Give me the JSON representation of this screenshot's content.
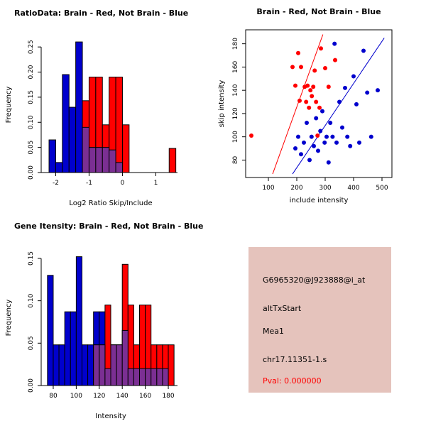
{
  "colors": {
    "red": "#ff0000",
    "blue": "#0000cd",
    "overlap": "#7b2f93",
    "axis": "#000000",
    "info_bg": "#e5c3bc",
    "pval": "#ff0000"
  },
  "info_panel": {
    "probe_id": "G6965320@J923888@i_at",
    "event_type": "altTxStart",
    "gene": "Mea1",
    "location": "chr17.11351-1.s",
    "pval": "Pval: 0.000000"
  },
  "chart_data": [
    {
      "id": "ratio_hist",
      "type": "bar",
      "title": "RatioData: Brain - Red, Not Brain - Blue",
      "xlabel": "Log2 Ratio Skip/Include",
      "ylabel": "Frequency",
      "xlim": [
        -2.35,
        1.65
      ],
      "ylim": [
        0,
        0.27
      ],
      "grid": false,
      "bin_width": 0.2,
      "xticks": [
        {
          "v": -2,
          "l": "-2"
        },
        {
          "v": -1,
          "l": "-1"
        },
        {
          "v": 0,
          "l": "0"
        },
        {
          "v": 1,
          "l": "1"
        }
      ],
      "yticks": [
        {
          "v": 0,
          "l": "0.00"
        },
        {
          "v": 0.05,
          "l": "0.05"
        },
        {
          "v": 0.1,
          "l": "0.10"
        },
        {
          "v": 0.15,
          "l": "0.15"
        },
        {
          "v": 0.2,
          "l": "0.20"
        },
        {
          "v": 0.25,
          "l": "0.25"
        }
      ],
      "series": [
        {
          "name": "Not Brain",
          "color_key": "blue",
          "bins": [
            [
              -2.2,
              0.065
            ],
            [
              -2.0,
              0.02
            ],
            [
              -1.8,
              0.195
            ],
            [
              -1.6,
              0.13
            ],
            [
              -1.4,
              0.26
            ],
            [
              -1.2,
              0.09
            ],
            [
              -1.0,
              0.05
            ],
            [
              -0.8,
              0.05
            ],
            [
              -0.6,
              0.05
            ],
            [
              -0.4,
              0.045
            ],
            [
              -0.2,
              0.02
            ]
          ]
        },
        {
          "name": "Brain",
          "color_key": "red",
          "bins": [
            [
              -1.2,
              0.143
            ],
            [
              -1.0,
              0.19
            ],
            [
              -0.8,
              0.19
            ],
            [
              -0.6,
              0.095
            ],
            [
              -0.4,
              0.19
            ],
            [
              -0.2,
              0.19
            ],
            [
              0.0,
              0.095
            ],
            [
              1.4,
              0.048
            ]
          ]
        }
      ]
    },
    {
      "id": "scatter_plot",
      "type": "scatter",
      "title": "Brain - Red, Not Brain - Blue",
      "xlabel": "include intensity",
      "ylabel": "skip intensity",
      "xlim": [
        20,
        535
      ],
      "ylim": [
        65,
        192
      ],
      "grid": false,
      "xticks": [
        {
          "v": 100,
          "l": "100"
        },
        {
          "v": 200,
          "l": "200"
        },
        {
          "v": 300,
          "l": "300"
        },
        {
          "v": 400,
          "l": "400"
        },
        {
          "v": 500,
          "l": "500"
        }
      ],
      "yticks": [
        {
          "v": 80,
          "l": "80"
        },
        {
          "v": 100,
          "l": "100"
        },
        {
          "v": 120,
          "l": "120"
        },
        {
          "v": 140,
          "l": "140"
        },
        {
          "v": 160,
          "l": "160"
        },
        {
          "v": 180,
          "l": "180"
        }
      ],
      "series": [
        {
          "name": "Brain",
          "color_key": "red",
          "points": [
            [
              40,
              101
            ],
            [
              185,
              160
            ],
            [
              195,
              144
            ],
            [
              205,
              172
            ],
            [
              210,
              131
            ],
            [
              215,
              160
            ],
            [
              228,
              143
            ],
            [
              233,
              130
            ],
            [
              238,
              144
            ],
            [
              243,
              125
            ],
            [
              248,
              140
            ],
            [
              253,
              135
            ],
            [
              258,
              143
            ],
            [
              263,
              157
            ],
            [
              268,
              130
            ],
            [
              273,
              101
            ],
            [
              280,
              125
            ],
            [
              285,
              176
            ],
            [
              300,
              159
            ],
            [
              312,
              143
            ],
            [
              335,
              166
            ]
          ]
        },
        {
          "name": "Not Brain",
          "color_key": "blue",
          "points": [
            [
              195,
              90
            ],
            [
              205,
              100
            ],
            [
              215,
              85
            ],
            [
              225,
              95
            ],
            [
              235,
              112
            ],
            [
              245,
              80
            ],
            [
              252,
              100
            ],
            [
              260,
              92
            ],
            [
              268,
              116
            ],
            [
              275,
              88
            ],
            [
              283,
              105
            ],
            [
              290,
              122
            ],
            [
              298,
              95
            ],
            [
              305,
              100
            ],
            [
              312,
              78
            ],
            [
              318,
              112
            ],
            [
              326,
              100
            ],
            [
              333,
              180
            ],
            [
              340,
              95
            ],
            [
              350,
              130
            ],
            [
              360,
              108
            ],
            [
              370,
              142
            ],
            [
              378,
              100
            ],
            [
              388,
              92
            ],
            [
              400,
              152
            ],
            [
              410,
              128
            ],
            [
              420,
              95
            ],
            [
              435,
              174
            ],
            [
              448,
              138
            ],
            [
              462,
              100
            ],
            [
              485,
              140
            ]
          ]
        }
      ],
      "lines": [
        {
          "name": "brain-fit-line",
          "color_key": "red",
          "x1": 115,
          "y1": 68,
          "x2": 292,
          "y2": 188
        },
        {
          "name": "notbrain-fit-line",
          "color_key": "blue",
          "x1": 185,
          "y1": 68,
          "x2": 508,
          "y2": 185
        }
      ]
    },
    {
      "id": "gene_hist",
      "type": "bar",
      "title": "Gene Itensity: Brain - Red, Not Brain - Blue",
      "xlabel": "Intensity",
      "ylabel": "Frequency",
      "xlim": [
        72,
        188
      ],
      "ylim": [
        0,
        0.16
      ],
      "grid": false,
      "bin_width": 5,
      "xticks": [
        {
          "v": 80,
          "l": "80"
        },
        {
          "v": 100,
          "l": "100"
        },
        {
          "v": 120,
          "l": "120"
        },
        {
          "v": 140,
          "l": "140"
        },
        {
          "v": 160,
          "l": "160"
        },
        {
          "v": 180,
          "l": "180"
        }
      ],
      "yticks": [
        {
          "v": 0,
          "l": "0.00"
        },
        {
          "v": 0.05,
          "l": "0.05"
        },
        {
          "v": 0.1,
          "l": "0.10"
        },
        {
          "v": 0.15,
          "l": "0.15"
        }
      ],
      "series": [
        {
          "name": "Not Brain",
          "color_key": "blue",
          "bins": [
            [
              75,
              0.13
            ],
            [
              80,
              0.048
            ],
            [
              85,
              0.048
            ],
            [
              90,
              0.087
            ],
            [
              95,
              0.087
            ],
            [
              100,
              0.152
            ],
            [
              105,
              0.048
            ],
            [
              110,
              0.048
            ],
            [
              115,
              0.087
            ],
            [
              120,
              0.087
            ],
            [
              125,
              0.02
            ],
            [
              130,
              0.048
            ],
            [
              135,
              0.048
            ],
            [
              140,
              0.065
            ],
            [
              145,
              0.02
            ],
            [
              150,
              0.02
            ],
            [
              155,
              0.02
            ],
            [
              160,
              0.02
            ],
            [
              165,
              0.02
            ],
            [
              170,
              0.02
            ],
            [
              175,
              0.02
            ]
          ]
        },
        {
          "name": "Brain",
          "color_key": "red",
          "bins": [
            [
              115,
              0.048
            ],
            [
              120,
              0.048
            ],
            [
              125,
              0.095
            ],
            [
              130,
              0.048
            ],
            [
              135,
              0.048
            ],
            [
              140,
              0.143
            ],
            [
              145,
              0.095
            ],
            [
              150,
              0.048
            ],
            [
              155,
              0.095
            ],
            [
              160,
              0.095
            ],
            [
              165,
              0.048
            ],
            [
              170,
              0.048
            ],
            [
              175,
              0.048
            ],
            [
              180,
              0.048
            ]
          ]
        }
      ]
    }
  ]
}
